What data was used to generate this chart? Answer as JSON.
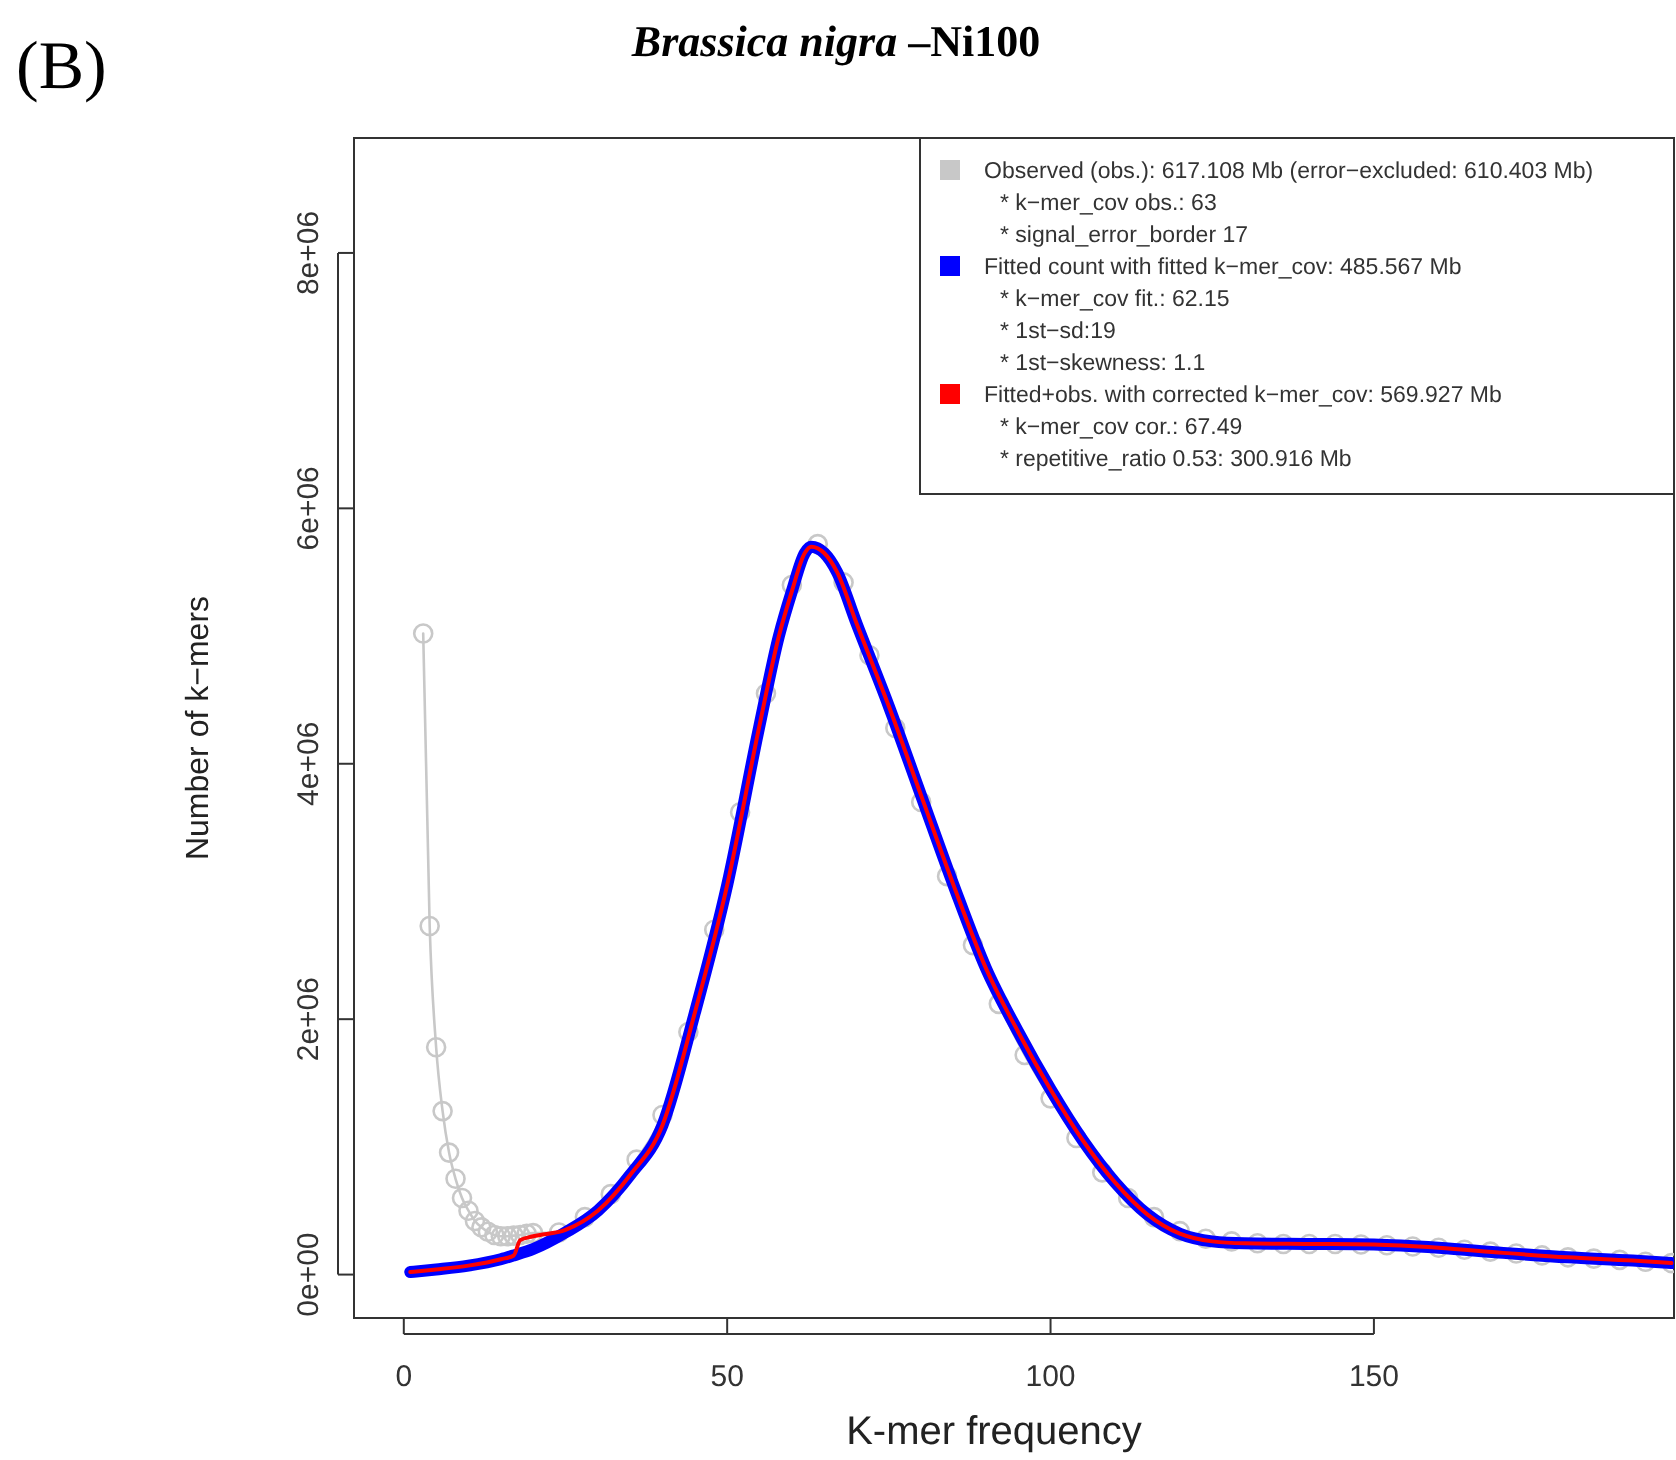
{
  "chart_data": {
    "type": "line",
    "title": "Brassica nigra –Ni100",
    "xlabel": "K-mer frequency",
    "ylabel": "Number of k−mers",
    "annotations": [
      "(B)"
    ],
    "xlim": [
      -7.7,
      196.4
    ],
    "xticks": [
      0,
      50,
      100,
      150
    ],
    "ylim": [
      -340000,
      8900000
    ],
    "yticks": [
      {
        "value": 0,
        "label": "0e+00"
      },
      {
        "value": 2000000,
        "label": "2e+06"
      },
      {
        "value": 4000000,
        "label": "4e+06"
      },
      {
        "value": 6000000,
        "label": "6e+06"
      },
      {
        "value": 8000000,
        "label": "8e+06"
      }
    ],
    "legend": "top right",
    "series": [
      {
        "name": "Observed (obs.): 617.108 Mb (error−excluded: 610.403 Mb)\n* k−mer_cov obs.: 63\n* signal_error_border 17",
        "color": "#c8c8c8",
        "marker": "circle",
        "x": [
          3,
          4,
          5,
          6,
          7,
          8,
          9,
          10,
          11,
          12,
          13,
          14,
          15,
          16,
          17,
          18,
          19,
          20,
          24,
          28,
          32,
          36,
          40,
          44,
          48,
          52,
          56,
          60,
          64,
          68,
          72,
          76,
          80,
          84,
          88,
          92,
          96,
          100,
          104,
          108,
          112,
          116,
          120,
          124,
          128,
          132,
          136,
          140,
          144,
          148,
          152,
          156,
          160,
          164,
          168,
          172,
          176,
          180,
          184,
          188,
          192,
          196
        ],
        "values": [
          5020000,
          2730000,
          1780000,
          1280000,
          955000,
          750000,
          600000,
          500000,
          420000,
          370000,
          335000,
          310000,
          300000,
          300000,
          305000,
          310000,
          320000,
          325000,
          330000,
          450000,
          630000,
          900000,
          1250000,
          1900000,
          2700000,
          3620000,
          4550000,
          5400000,
          5720000,
          5420000,
          4850000,
          4280000,
          3700000,
          3120000,
          2580000,
          2120000,
          1720000,
          1380000,
          1070000,
          800000,
          600000,
          450000,
          340000,
          280000,
          260000,
          245000,
          240000,
          240000,
          240000,
          235000,
          230000,
          220000,
          210000,
          195000,
          180000,
          165000,
          150000,
          135000,
          125000,
          115000,
          100000,
          90000
        ]
      },
      {
        "name": "Fitted count with fitted k−mer_cov: 485.567 Mb\n* k−mer_cov fit.: 62.15\n* 1st−sd:19\n* 1st−skewness: 1.1",
        "color": "#0000ff",
        "marker": "none",
        "x": [
          1,
          5,
          10,
          15,
          17,
          20,
          25,
          30,
          35,
          40,
          45,
          50,
          55,
          58,
          60,
          62,
          63,
          65,
          67,
          70,
          75,
          80,
          85,
          90,
          95,
          100,
          105,
          110,
          115,
          120,
          125,
          130,
          140,
          150,
          160,
          170,
          180,
          190,
          196
        ],
        "values": [
          20000,
          40000,
          70000,
          120000,
          150000,
          200000,
          330000,
          500000,
          780000,
          1170000,
          2050000,
          3050000,
          4300000,
          5000000,
          5350000,
          5650000,
          5700000,
          5650000,
          5500000,
          5100000,
          4450000,
          3750000,
          3050000,
          2400000,
          1900000,
          1450000,
          1050000,
          720000,
          470000,
          320000,
          260000,
          245000,
          240000,
          235000,
          210000,
          170000,
          135000,
          110000,
          90000
        ]
      },
      {
        "name": "Fitted+obs. with corrected k−mer_cov: 569.927 Mb\n* k−mer_cov cor.: 67.49\n* repetitive_ratio 0.53: 300.916 Mb",
        "color": "#ff0000",
        "marker": "none",
        "x": [
          1,
          5,
          10,
          15,
          17,
          18,
          20,
          25,
          30,
          35,
          40,
          45,
          50,
          55,
          58,
          60,
          62,
          63,
          65,
          67,
          70,
          75,
          80,
          85,
          90,
          95,
          100,
          105,
          110,
          115,
          120,
          125,
          130,
          140,
          150,
          160,
          170,
          180,
          190,
          196
        ],
        "values": [
          20000,
          40000,
          70000,
          120000,
          150000,
          270000,
          300000,
          350000,
          500000,
          780000,
          1170000,
          2050000,
          3050000,
          4300000,
          5000000,
          5350000,
          5650000,
          5700000,
          5650000,
          5500000,
          5100000,
          4450000,
          3750000,
          3050000,
          2400000,
          1900000,
          1450000,
          1050000,
          720000,
          470000,
          320000,
          260000,
          245000,
          240000,
          235000,
          210000,
          170000,
          135000,
          110000,
          90000
        ]
      }
    ]
  }
}
